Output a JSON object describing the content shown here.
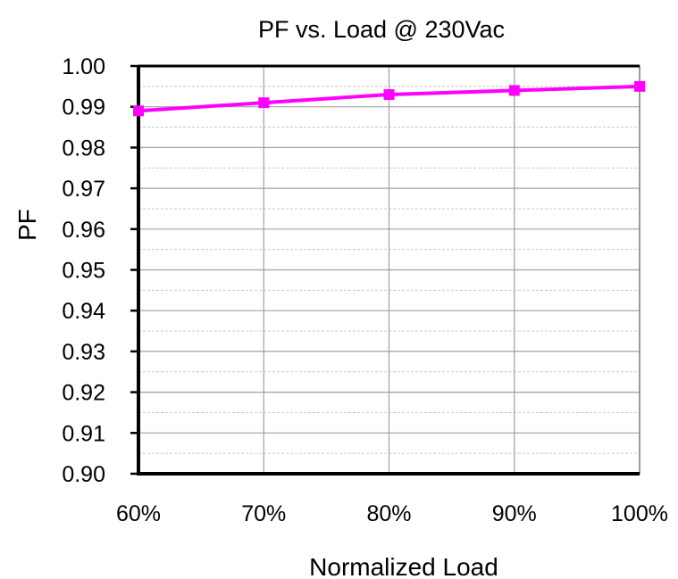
{
  "chart_data": {
    "type": "line",
    "title": "PF vs. Load @ 230Vac",
    "xlabel": "Normalized Load",
    "ylabel": "PF",
    "categories": [
      "60%",
      "70%",
      "80%",
      "90%",
      "100%"
    ],
    "ylim": [
      0.9,
      1.0
    ],
    "y_ticks": [
      "0.90",
      "0.91",
      "0.92",
      "0.93",
      "0.94",
      "0.95",
      "0.96",
      "0.97",
      "0.98",
      "0.99",
      "1.00"
    ],
    "grid": true,
    "legend": "none",
    "series": [
      {
        "values": [
          0.989,
          0.991,
          0.993,
          0.994,
          0.995
        ],
        "color": "#ff00ff",
        "marker": "square"
      }
    ],
    "colors": {
      "grid_major": "#a0a0a0",
      "grid_minor": "#c8c8c8",
      "axis": "#000000"
    }
  }
}
